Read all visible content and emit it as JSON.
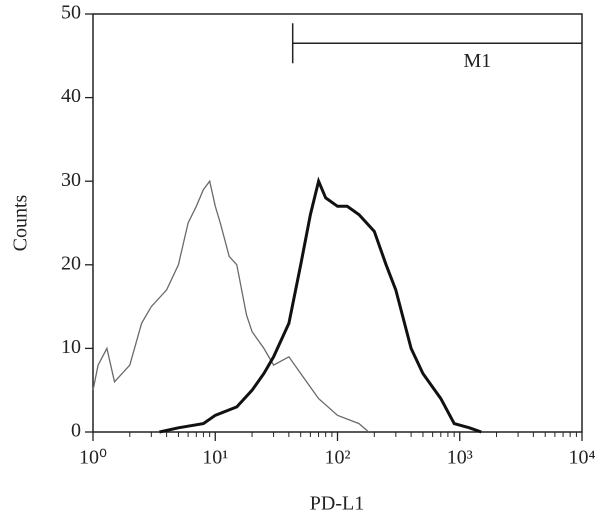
{
  "chart_data": {
    "type": "histogram-line",
    "x_label": "PD-L1",
    "y_label": "Counts",
    "xlim": [
      1,
      10000
    ],
    "ylim": [
      0,
      50
    ],
    "xscale": "log",
    "xticks": [
      {
        "value": 1,
        "label": "10⁰"
      },
      {
        "value": 10,
        "label": "10¹"
      },
      {
        "value": 100,
        "label": "10²"
      },
      {
        "value": 1000,
        "label": "10³"
      },
      {
        "value": 10000,
        "label": "10⁴"
      }
    ],
    "yticks": [
      0,
      10,
      20,
      30,
      40,
      50
    ],
    "series": [
      {
        "color": "#6a6a6a",
        "width": 1.3,
        "x": [
          1,
          1.1,
          1.3,
          1.5,
          2,
          2.5,
          3,
          4,
          5,
          6,
          7,
          8,
          9,
          10,
          11,
          13,
          15,
          18,
          20,
          25,
          30,
          40,
          50,
          70,
          100,
          150,
          180
        ],
        "values": [
          5,
          8,
          10,
          6,
          8,
          13,
          15,
          17,
          20,
          25,
          27,
          29,
          30,
          27,
          25,
          21,
          20,
          14,
          12,
          10,
          8,
          9,
          7,
          4,
          2,
          1,
          0
        ]
      },
      {
        "color": "#111111",
        "width": 3,
        "x": [
          3.5,
          5,
          8,
          10,
          15,
          20,
          25,
          30,
          40,
          50,
          60,
          70,
          80,
          100,
          120,
          150,
          200,
          250,
          300,
          400,
          500,
          700,
          900,
          1200,
          1500
        ],
        "values": [
          0,
          0.5,
          1,
          2,
          3,
          5,
          7,
          9,
          13,
          20,
          26,
          30,
          28,
          27,
          27,
          26,
          24,
          20,
          17,
          10,
          7,
          4,
          1,
          0.5,
          0
        ]
      }
    ],
    "annotations": [
      {
        "label": "M1",
        "x_start": 43,
        "x_end": 10000,
        "y": 46.5
      }
    ]
  }
}
